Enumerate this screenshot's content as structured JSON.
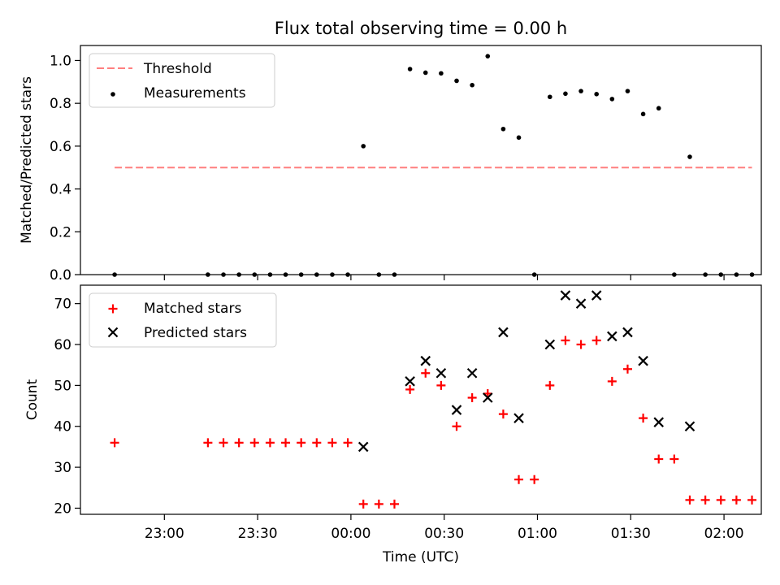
{
  "chart_data": [
    {
      "type": "scatter",
      "title": "Flux total observing time = 0.00 h",
      "xlabel": "",
      "ylabel": "Matched/Predicted stars",
      "xlim": [
        "22:33",
        "02:12"
      ],
      "ylim": [
        0,
        1.07
      ],
      "yticks": [
        0.0,
        0.2,
        0.4,
        0.6,
        0.8,
        1.0
      ],
      "ytick_labels": [
        "0.0",
        "0.2",
        "0.4",
        "0.6",
        "0.8",
        "1.0"
      ],
      "legend_position": "top-left",
      "series": [
        {
          "name": "Threshold",
          "kind": "dashed-line",
          "color": "#ff7f7f",
          "x": [
            "22:44",
            "02:09"
          ],
          "y": [
            0.5,
            0.5
          ]
        },
        {
          "name": "Measurements",
          "kind": "dot",
          "color": "#000000",
          "x": [
            "22:44",
            "23:14",
            "23:19",
            "23:24",
            "23:29",
            "23:34",
            "23:39",
            "23:44",
            "23:49",
            "23:54",
            "23:59",
            "00:04",
            "00:09",
            "00:14",
            "00:19",
            "00:24",
            "00:29",
            "00:34",
            "00:39",
            "00:44",
            "00:49",
            "00:54",
            "00:59",
            "01:04",
            "01:09",
            "01:14",
            "01:19",
            "01:24",
            "01:29",
            "01:34",
            "01:39",
            "01:44",
            "01:49",
            "01:54",
            "01:59",
            "02:04",
            "02:09"
          ],
          "y": [
            0,
            0,
            0,
            0,
            0,
            0,
            0,
            0,
            0,
            0,
            0,
            0.6,
            0,
            0,
            0.96,
            0.943,
            0.94,
            0.905,
            0.885,
            1.02,
            0.68,
            0.64,
            0,
            0.83,
            0.845,
            0.857,
            0.843,
            0.82,
            0.857,
            0.75,
            0.777,
            0,
            0.55,
            0,
            0,
            0,
            0
          ]
        }
      ]
    },
    {
      "type": "scatter",
      "title": "",
      "xlabel": "Time (UTC)",
      "ylabel": "Count",
      "xlim": [
        "22:33",
        "02:12"
      ],
      "ylim": [
        18.5,
        74.5
      ],
      "xticks": [
        "23:00",
        "23:30",
        "00:00",
        "00:30",
        "01:00",
        "01:30",
        "02:00"
      ],
      "yticks": [
        20,
        30,
        40,
        50,
        60,
        70
      ],
      "ytick_labels": [
        "20",
        "30",
        "40",
        "50",
        "60",
        "70"
      ],
      "legend_position": "top-left",
      "series": [
        {
          "name": "Matched stars",
          "kind": "plus",
          "color": "#ff0000",
          "x": [
            "22:44",
            "23:14",
            "23:19",
            "23:24",
            "23:29",
            "23:34",
            "23:39",
            "23:44",
            "23:49",
            "23:54",
            "23:59",
            "00:04",
            "00:09",
            "00:14",
            "00:19",
            "00:24",
            "00:29",
            "00:34",
            "00:39",
            "00:44",
            "00:49",
            "00:54",
            "00:59",
            "01:04",
            "01:09",
            "01:14",
            "01:19",
            "01:24",
            "01:29",
            "01:34",
            "01:39",
            "01:44",
            "01:49",
            "01:54",
            "01:59",
            "02:04",
            "02:09"
          ],
          "y": [
            36,
            36,
            36,
            36,
            36,
            36,
            36,
            36,
            36,
            36,
            36,
            21,
            21,
            21,
            49,
            53,
            50,
            40,
            47,
            48,
            43,
            27,
            27,
            50,
            61,
            60,
            61,
            51,
            54,
            42,
            32,
            32,
            22,
            22,
            22,
            22,
            22
          ]
        },
        {
          "name": "Predicted stars",
          "kind": "x",
          "color": "#000000",
          "x": [
            "00:04",
            "00:19",
            "00:24",
            "00:29",
            "00:34",
            "00:39",
            "00:44",
            "00:49",
            "00:54",
            "01:04",
            "01:09",
            "01:14",
            "01:19",
            "01:24",
            "01:29",
            "01:34",
            "01:39",
            "01:49"
          ],
          "y": [
            35,
            51,
            56,
            53,
            44,
            53,
            47,
            63,
            42,
            60,
            72,
            70,
            72,
            62,
            63,
            56,
            41,
            40
          ]
        }
      ]
    }
  ]
}
